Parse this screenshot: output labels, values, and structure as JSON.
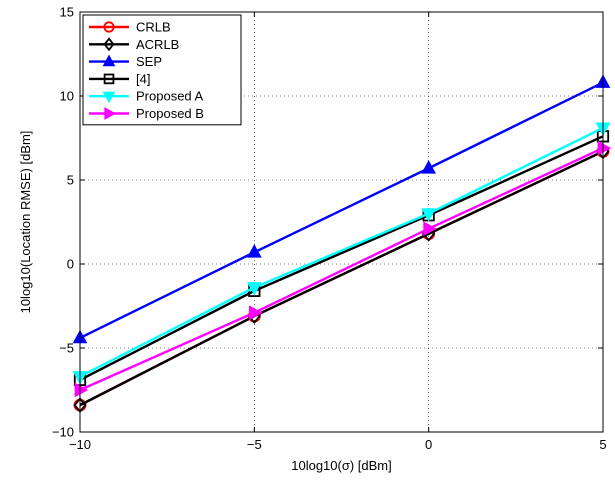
{
  "chart_data": {
    "type": "line",
    "title": "",
    "xlabel": "10log10(σ) [dBm]",
    "ylabel": "10log10(Location RMSE) [dBm]",
    "x": [
      -10,
      -5,
      0,
      5
    ],
    "xlim": [
      -10,
      5
    ],
    "ylim": [
      -10,
      15
    ],
    "xticks": [
      -10,
      -5,
      0,
      5
    ],
    "yticks": [
      -10,
      -5,
      0,
      5,
      10,
      15
    ],
    "xtick_labels": [
      "−10",
      "−5",
      "0",
      "5"
    ],
    "ytick_labels": [
      "−10",
      "−5",
      "0",
      "5",
      "10",
      "15"
    ],
    "grid": true,
    "legend_position": "top-left",
    "series": [
      {
        "name": "CRLB",
        "color": "#ff0000",
        "marker": "circle",
        "values": [
          -8.4,
          -3.1,
          1.8,
          6.7
        ]
      },
      {
        "name": "ACRLB",
        "color": "#000000",
        "marker": "diamond",
        "values": [
          -8.4,
          -3.1,
          1.8,
          6.7
        ]
      },
      {
        "name": "SEP",
        "color": "#0000ff",
        "marker": "triangle-up",
        "values": [
          -4.4,
          0.7,
          5.7,
          10.8
        ]
      },
      {
        "name": "[4]",
        "color": "#000000",
        "marker": "square",
        "values": [
          -6.9,
          -1.6,
          2.9,
          7.6
        ]
      },
      {
        "name": "Proposed A",
        "color": "#00ffff",
        "marker": "triangle-down",
        "values": [
          -6.7,
          -1.4,
          3.0,
          8.1
        ]
      },
      {
        "name": "Proposed B",
        "color": "#ff00ff",
        "marker": "triangle-right",
        "values": [
          -7.5,
          -2.9,
          2.1,
          6.9
        ]
      }
    ]
  }
}
